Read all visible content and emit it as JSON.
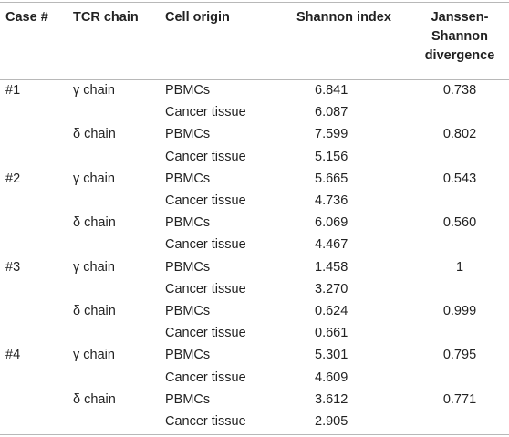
{
  "table": {
    "headers": {
      "case": "Case #",
      "chain": "TCR chain",
      "origin": "Cell origin",
      "shannon": "Shannon index",
      "jsd_line1": "Janssen-",
      "jsd_line2": "Shannon",
      "jsd_line3": "divergence"
    },
    "rows": [
      {
        "case": "#1",
        "chain": "γ chain",
        "origin": "PBMCs",
        "shannon": "6.841",
        "jsd": "0.738"
      },
      {
        "case": "",
        "chain": "",
        "origin": "Cancer tissue",
        "shannon": "6.087",
        "jsd": ""
      },
      {
        "case": "",
        "chain": "δ chain",
        "origin": "PBMCs",
        "shannon": "7.599",
        "jsd": "0.802"
      },
      {
        "case": "",
        "chain": "",
        "origin": "Cancer tissue",
        "shannon": "5.156",
        "jsd": ""
      },
      {
        "case": "#2",
        "chain": "γ chain",
        "origin": "PBMCs",
        "shannon": "5.665",
        "jsd": "0.543"
      },
      {
        "case": "",
        "chain": "",
        "origin": "Cancer tissue",
        "shannon": "4.736",
        "jsd": ""
      },
      {
        "case": "",
        "chain": "δ chain",
        "origin": "PBMCs",
        "shannon": "6.069",
        "jsd": "0.560"
      },
      {
        "case": "",
        "chain": "",
        "origin": "Cancer tissue",
        "shannon": "4.467",
        "jsd": ""
      },
      {
        "case": "#3",
        "chain": "γ chain",
        "origin": "PBMCs",
        "shannon": "1.458",
        "jsd": "1"
      },
      {
        "case": "",
        "chain": "",
        "origin": "Cancer tissue",
        "shannon": "3.270",
        "jsd": ""
      },
      {
        "case": "",
        "chain": "δ chain",
        "origin": "PBMCs",
        "shannon": "0.624",
        "jsd": "0.999"
      },
      {
        "case": "",
        "chain": "",
        "origin": "Cancer tissue",
        "shannon": "0.661",
        "jsd": ""
      },
      {
        "case": "#4",
        "chain": "γ chain",
        "origin": "PBMCs",
        "shannon": "5.301",
        "jsd": "0.795"
      },
      {
        "case": "",
        "chain": "",
        "origin": "Cancer tissue",
        "shannon": "4.609",
        "jsd": ""
      },
      {
        "case": "",
        "chain": "δ chain",
        "origin": "PBMCs",
        "shannon": "3.612",
        "jsd": "0.771"
      },
      {
        "case": "",
        "chain": "",
        "origin": "Cancer tissue",
        "shannon": "2.905",
        "jsd": ""
      }
    ]
  }
}
